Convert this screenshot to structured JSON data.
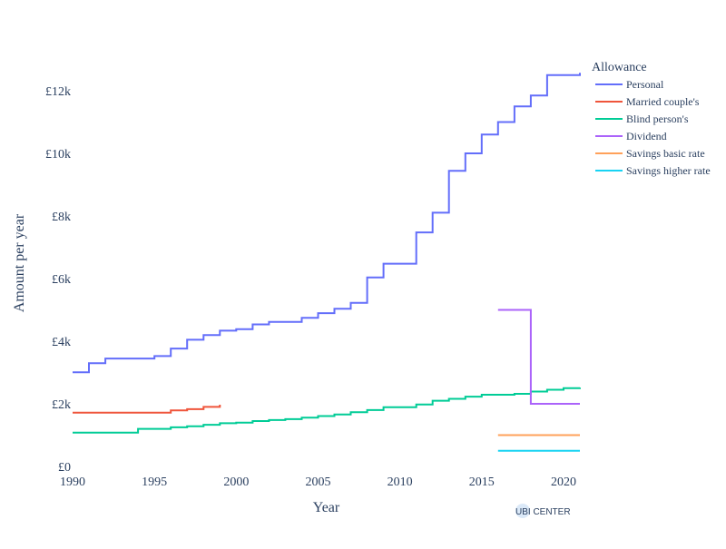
{
  "chart_data": {
    "type": "line",
    "line_shape": "step",
    "title": "",
    "xlabel": "Year",
    "ylabel": "Amount per year",
    "xlim": [
      1990,
      2021
    ],
    "ylim": [
      0,
      12500
    ],
    "x_ticks": [
      1990,
      1995,
      2000,
      2005,
      2010,
      2015,
      2020
    ],
    "x_tick_labels": [
      "1990",
      "1995",
      "2000",
      "2005",
      "2010",
      "2015",
      "2020"
    ],
    "y_ticks": [
      0,
      2000,
      4000,
      6000,
      8000,
      10000,
      12000
    ],
    "y_tick_labels": [
      "£0",
      "£2k",
      "£4k",
      "£6k",
      "£8k",
      "£10k",
      "£12k"
    ],
    "grid": false,
    "legend": {
      "title": "Allowance",
      "placement": "right"
    },
    "series": [
      {
        "name": "Personal",
        "color": "#636efa",
        "x": [
          1990,
          1991,
          1992,
          1993,
          1994,
          1995,
          1996,
          1997,
          1998,
          1999,
          2000,
          2001,
          2002,
          2003,
          2004,
          2005,
          2006,
          2007,
          2008,
          2009,
          2010,
          2011,
          2012,
          2013,
          2014,
          2015,
          2016,
          2017,
          2018,
          2019,
          2020,
          2021
        ],
        "y": [
          3005,
          3295,
          3445,
          3445,
          3445,
          3525,
          3765,
          4045,
          4195,
          4335,
          4385,
          4535,
          4615,
          4615,
          4745,
          4895,
          5035,
          5225,
          6035,
          6475,
          6475,
          7475,
          8105,
          9440,
          10000,
          10600,
          11000,
          11500,
          11850,
          12500,
          12500,
          12570
        ]
      },
      {
        "name": "Married couple's",
        "color": "#ef553b",
        "x": [
          1990,
          1991,
          1992,
          1993,
          1994,
          1995,
          1996,
          1997,
          1998,
          1999
        ],
        "y": [
          1720,
          1720,
          1720,
          1720,
          1720,
          1720,
          1790,
          1830,
          1900,
          1970
        ]
      },
      {
        "name": "Blind person's",
        "color": "#00cc96",
        "x": [
          1990,
          1991,
          1992,
          1993,
          1994,
          1995,
          1996,
          1997,
          1998,
          1999,
          2000,
          2001,
          2002,
          2003,
          2004,
          2005,
          2006,
          2007,
          2008,
          2009,
          2010,
          2011,
          2012,
          2013,
          2014,
          2015,
          2016,
          2017,
          2018,
          2019,
          2020,
          2021
        ],
        "y": [
          1080,
          1080,
          1080,
          1080,
          1200,
          1200,
          1250,
          1280,
          1330,
          1380,
          1400,
          1450,
          1480,
          1510,
          1560,
          1610,
          1660,
          1730,
          1800,
          1890,
          1890,
          1980,
          2100,
          2160,
          2230,
          2290,
          2290,
          2320,
          2390,
          2450,
          2500,
          2520
        ]
      },
      {
        "name": "Dividend",
        "color": "#ab63fa",
        "x": [
          2016,
          2017,
          2018,
          2019,
          2020,
          2021
        ],
        "y": [
          5000,
          5000,
          2000,
          2000,
          2000,
          2000
        ]
      },
      {
        "name": "Savings basic rate",
        "color": "#ffa15a",
        "x": [
          2016,
          2017,
          2018,
          2019,
          2020,
          2021
        ],
        "y": [
          1000,
          1000,
          1000,
          1000,
          1000,
          1000
        ]
      },
      {
        "name": "Savings higher rate",
        "color": "#19d3f3",
        "x": [
          2016,
          2017,
          2018,
          2019,
          2020,
          2021
        ],
        "y": [
          500,
          500,
          500,
          500,
          500,
          500
        ]
      }
    ]
  },
  "watermark": {
    "text": "UBI CENTER",
    "color": "#3e8ede"
  }
}
